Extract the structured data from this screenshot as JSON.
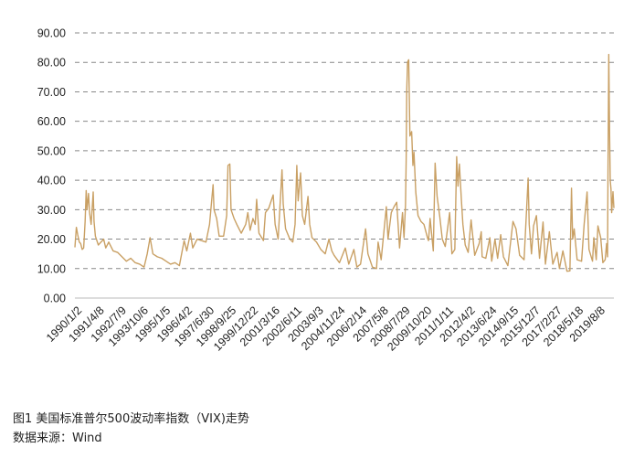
{
  "chart_data": {
    "type": "line",
    "series_color": "#c9a064",
    "grid": "horizontal dashed",
    "ylim": [
      0,
      90
    ],
    "y_ticks": [
      "0.00",
      "10.00",
      "20.00",
      "30.00",
      "40.00",
      "50.00",
      "60.00",
      "70.00",
      "80.00",
      "90.00"
    ],
    "x_tick_labels": [
      "1990/1/2",
      "1991/4/8",
      "1992/7/9",
      "1993/10/6",
      "1995/1/5",
      "1996/4/2",
      "1997/6/30",
      "1998/9/25",
      "1999/12/22",
      "2001/3/16",
      "2002/6/11",
      "2003/9/3",
      "2004/11/24",
      "2006/2/14",
      "2007/5/8",
      "2008/7/29",
      "2009/10/20",
      "2011/1/11",
      "2012/4/2",
      "2013/6/24",
      "2014/9/15",
      "2015/12/7",
      "2017/2/27",
      "2018/5/18",
      "2019/8/8"
    ],
    "x_start": "1990-01-02",
    "x_end": "2020-06-30",
    "series": [
      {
        "values": [
          [
            "1990-01-02",
            17.2
          ],
          [
            "1990-02-01",
            24.0
          ],
          [
            "1990-03-01",
            21.5
          ],
          [
            "1990-04-02",
            19.0
          ],
          [
            "1990-05-01",
            18.5
          ],
          [
            "1990-06-01",
            16.5
          ],
          [
            "1990-07-02",
            17.0
          ],
          [
            "1990-08-01",
            26.0
          ],
          [
            "1990-08-23",
            36.5
          ],
          [
            "1990-09-10",
            30.0
          ],
          [
            "1990-10-10",
            35.5
          ],
          [
            "1990-11-01",
            29.0
          ],
          [
            "1990-12-03",
            25.0
          ],
          [
            "1991-01-15",
            36.0
          ],
          [
            "1991-02-01",
            26.0
          ],
          [
            "1991-03-01",
            21.0
          ],
          [
            "1991-05-01",
            18.0
          ],
          [
            "1991-08-19",
            20.0
          ],
          [
            "1991-10-01",
            17.0
          ],
          [
            "1991-12-02",
            19.0
          ],
          [
            "1992-03-02",
            16.0
          ],
          [
            "1992-06-01",
            15.5
          ],
          [
            "1992-09-01",
            14.0
          ],
          [
            "1992-12-01",
            12.5
          ],
          [
            "1993-03-01",
            13.5
          ],
          [
            "1993-06-01",
            12.0
          ],
          [
            "1993-09-01",
            11.5
          ],
          [
            "1993-12-01",
            10.5
          ],
          [
            "1994-02-04",
            15.0
          ],
          [
            "1994-04-04",
            20.5
          ],
          [
            "1994-06-01",
            15.0
          ],
          [
            "1994-09-01",
            14.0
          ],
          [
            "1994-12-01",
            13.5
          ],
          [
            "1995-03-01",
            12.5
          ],
          [
            "1995-06-01",
            11.5
          ],
          [
            "1995-09-01",
            12.0
          ],
          [
            "1995-12-01",
            11.0
          ],
          [
            "1996-03-08",
            19.5
          ],
          [
            "1996-05-01",
            16.0
          ],
          [
            "1996-07-16",
            22.0
          ],
          [
            "1996-09-02",
            17.0
          ],
          [
            "1996-12-02",
            20.0
          ],
          [
            "1997-03-03",
            19.5
          ],
          [
            "1997-06-02",
            19.0
          ],
          [
            "1997-08-15",
            25.0
          ],
          [
            "1997-10-27",
            38.5
          ],
          [
            "1997-11-15",
            30.0
          ],
          [
            "1998-01-09",
            27.0
          ],
          [
            "1998-03-02",
            21.0
          ],
          [
            "1998-06-01",
            21.0
          ],
          [
            "1998-08-04",
            28.0
          ],
          [
            "1998-08-31",
            45.0
          ],
          [
            "1998-10-08",
            45.5
          ],
          [
            "1998-11-02",
            30.0
          ],
          [
            "1999-01-04",
            27.0
          ],
          [
            "1999-03-01",
            25.0
          ],
          [
            "1999-06-01",
            22.0
          ],
          [
            "1999-09-01",
            25.0
          ],
          [
            "1999-10-15",
            29.0
          ],
          [
            "1999-12-01",
            23.0
          ],
          [
            "2000-01-28",
            27.0
          ],
          [
            "2000-03-15",
            25.0
          ],
          [
            "2000-04-14",
            33.5
          ],
          [
            "2000-06-01",
            22.0
          ],
          [
            "2000-09-01",
            19.5
          ],
          [
            "2000-10-13",
            29.0
          ],
          [
            "2000-12-20",
            30.5
          ],
          [
            "2001-03-22",
            35.0
          ],
          [
            "2001-05-01",
            25.0
          ],
          [
            "2001-07-02",
            20.0
          ],
          [
            "2001-09-20",
            43.5
          ],
          [
            "2001-10-15",
            32.0
          ],
          [
            "2001-12-03",
            23.5
          ],
          [
            "2002-03-01",
            20.0
          ],
          [
            "2002-05-01",
            19.0
          ],
          [
            "2002-06-17",
            25.0
          ],
          [
            "2002-07-23",
            45.0
          ],
          [
            "2002-08-20",
            33.0
          ],
          [
            "2002-10-09",
            42.5
          ],
          [
            "2002-11-15",
            28.0
          ],
          [
            "2003-01-02",
            25.0
          ],
          [
            "2003-03-11",
            34.5
          ],
          [
            "2003-04-15",
            25.0
          ],
          [
            "2003-06-02",
            20.5
          ],
          [
            "2003-09-02",
            19.0
          ],
          [
            "2003-12-01",
            16.5
          ],
          [
            "2004-03-01",
            15.0
          ],
          [
            "2004-05-17",
            20.0
          ],
          [
            "2004-07-15",
            16.0
          ],
          [
            "2004-09-01",
            14.5
          ],
          [
            "2004-12-20",
            12.0
          ],
          [
            "2005-04-20",
            17.0
          ],
          [
            "2005-07-01",
            11.5
          ],
          [
            "2005-10-14",
            16.5
          ],
          [
            "2005-12-15",
            10.5
          ],
          [
            "2006-03-01",
            11.5
          ],
          [
            "2006-06-13",
            23.5
          ],
          [
            "2006-08-01",
            15.0
          ],
          [
            "2006-11-01",
            10.5
          ],
          [
            "2007-01-25",
            10.0
          ],
          [
            "2007-02-27",
            19.0
          ],
          [
            "2007-05-01",
            13.0
          ],
          [
            "2007-08-16",
            31.0
          ],
          [
            "2007-09-20",
            20.0
          ],
          [
            "2007-11-26",
            29.0
          ],
          [
            "2008-01-22",
            31.0
          ],
          [
            "2008-03-17",
            32.5
          ],
          [
            "2008-05-15",
            17.0
          ],
          [
            "2008-07-15",
            29.0
          ],
          [
            "2008-08-15",
            20.5
          ],
          [
            "2008-09-15",
            31.7
          ],
          [
            "2008-09-29",
            47.0
          ],
          [
            "2008-10-10",
            70.0
          ],
          [
            "2008-10-27",
            80.1
          ],
          [
            "2008-11-20",
            80.9
          ],
          [
            "2008-12-15",
            55.0
          ],
          [
            "2009-01-20",
            56.5
          ],
          [
            "2009-02-15",
            45.0
          ],
          [
            "2009-03-09",
            49.5
          ],
          [
            "2009-04-15",
            36.0
          ],
          [
            "2009-06-01",
            28.0
          ],
          [
            "2009-08-01",
            26.0
          ],
          [
            "2009-10-01",
            25.0
          ],
          [
            "2009-12-21",
            20.0
          ],
          [
            "2010-01-04",
            19.5
          ],
          [
            "2010-02-05",
            27.0
          ],
          [
            "2010-04-12",
            16.0
          ],
          [
            "2010-05-20",
            45.8
          ],
          [
            "2010-06-30",
            34.5
          ],
          [
            "2010-08-25",
            27.5
          ],
          [
            "2010-10-15",
            20.0
          ],
          [
            "2010-12-15",
            17.5
          ],
          [
            "2011-03-16",
            29.0
          ],
          [
            "2011-05-02",
            15.0
          ],
          [
            "2011-07-01",
            16.5
          ],
          [
            "2011-08-08",
            48.0
          ],
          [
            "2011-09-05",
            38.0
          ],
          [
            "2011-10-03",
            45.5
          ],
          [
            "2011-11-15",
            33.0
          ],
          [
            "2011-12-15",
            25.0
          ],
          [
            "2012-02-01",
            18.0
          ],
          [
            "2012-04-02",
            15.5
          ],
          [
            "2012-06-01",
            26.5
          ],
          [
            "2012-08-15",
            14.5
          ],
          [
            "2012-11-15",
            18.5
          ],
          [
            "2012-12-28",
            22.5
          ],
          [
            "2013-01-15",
            14.0
          ],
          [
            "2013-04-01",
            13.5
          ],
          [
            "2013-06-24",
            20.5
          ],
          [
            "2013-08-01",
            12.5
          ],
          [
            "2013-10-08",
            20.0
          ],
          [
            "2013-12-01",
            13.5
          ],
          [
            "2014-02-03",
            21.5
          ],
          [
            "2014-04-01",
            14.0
          ],
          [
            "2014-07-01",
            11.0
          ],
          [
            "2014-10-15",
            26.0
          ],
          [
            "2014-12-16",
            23.5
          ],
          [
            "2015-03-01",
            14.5
          ],
          [
            "2015-06-01",
            13.0
          ],
          [
            "2015-08-24",
            40.7
          ],
          [
            "2015-09-15",
            25.0
          ],
          [
            "2015-11-01",
            15.0
          ],
          [
            "2015-12-14",
            24.5
          ],
          [
            "2016-02-11",
            28.0
          ],
          [
            "2016-04-15",
            13.5
          ],
          [
            "2016-06-27",
            25.8
          ],
          [
            "2016-08-15",
            11.5
          ],
          [
            "2016-11-04",
            22.5
          ],
          [
            "2017-01-15",
            11.5
          ],
          [
            "2017-04-13",
            15.5
          ],
          [
            "2017-06-01",
            10.0
          ],
          [
            "2017-08-11",
            16.0
          ],
          [
            "2017-11-03",
            9.1
          ],
          [
            "2018-01-03",
            9.2
          ],
          [
            "2018-02-05",
            37.3
          ],
          [
            "2018-03-01",
            20.0
          ],
          [
            "2018-04-02",
            23.5
          ],
          [
            "2018-06-01",
            13.0
          ],
          [
            "2018-09-01",
            12.5
          ],
          [
            "2018-10-24",
            25.0
          ],
          [
            "2018-12-24",
            36.0
          ],
          [
            "2019-02-01",
            16.5
          ],
          [
            "2019-04-15",
            12.5
          ],
          [
            "2019-05-13",
            20.5
          ],
          [
            "2019-07-01",
            13.0
          ],
          [
            "2019-08-05",
            24.5
          ],
          [
            "2019-10-01",
            20.5
          ],
          [
            "2019-11-15",
            12.0
          ],
          [
            "2020-01-02",
            13.0
          ],
          [
            "2020-01-31",
            18.5
          ],
          [
            "2020-02-20",
            14.0
          ],
          [
            "2020-02-28",
            40.0
          ],
          [
            "2020-03-16",
            82.7
          ],
          [
            "2020-04-01",
            57.0
          ],
          [
            "2020-04-15",
            40.0
          ],
          [
            "2020-05-01",
            37.0
          ],
          [
            "2020-05-15",
            29.0
          ],
          [
            "2020-06-11",
            36.1
          ],
          [
            "2020-06-30",
            30.5
          ]
        ]
      }
    ]
  },
  "caption": {
    "title": "图1 美国标准普尔500波动率指数（VIX)走势",
    "source": "数据来源：Wind"
  }
}
